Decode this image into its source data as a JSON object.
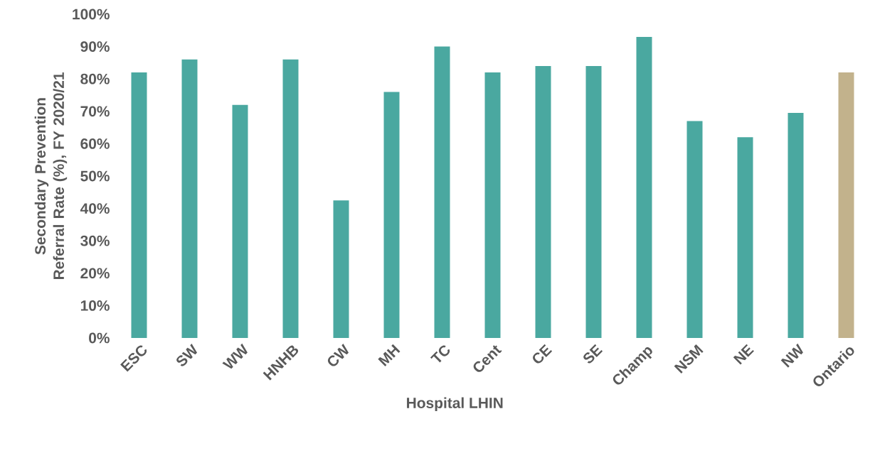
{
  "chart_data": {
    "type": "bar",
    "xlabel": "Hospital LHIN",
    "ylabel": "Secondary Prevention Referral Rate (%), FY 2020/21",
    "categories": [
      "ESC",
      "SW",
      "WW",
      "HNHB",
      "CW",
      "MH",
      "TC",
      "Cent",
      "CE",
      "SE",
      "Champ",
      "NSM",
      "NE",
      "NW",
      "Ontario"
    ],
    "values": [
      82,
      86,
      72,
      86,
      42.5,
      76,
      90,
      82,
      84,
      84,
      93,
      67,
      62,
      69.5,
      82
    ],
    "colors": [
      "#4aa8a0",
      "#4aa8a0",
      "#4aa8a0",
      "#4aa8a0",
      "#4aa8a0",
      "#4aa8a0",
      "#4aa8a0",
      "#4aa8a0",
      "#4aa8a0",
      "#4aa8a0",
      "#4aa8a0",
      "#4aa8a0",
      "#4aa8a0",
      "#4aa8a0",
      "#c2b28c"
    ],
    "ylim": [
      0,
      100
    ],
    "yticks": [
      {
        "value": 0,
        "label": "0%"
      },
      {
        "value": 10,
        "label": "10%"
      },
      {
        "value": 20,
        "label": "20%"
      },
      {
        "value": 30,
        "label": "30%"
      },
      {
        "value": 40,
        "label": "40%"
      },
      {
        "value": 50,
        "label": "50%"
      },
      {
        "value": 60,
        "label": "60%"
      },
      {
        "value": 70,
        "label": "70%"
      },
      {
        "value": 80,
        "label": "80%"
      },
      {
        "value": 90,
        "label": "90%"
      },
      {
        "value": 100,
        "label": "100%"
      }
    ],
    "grid": false
  }
}
